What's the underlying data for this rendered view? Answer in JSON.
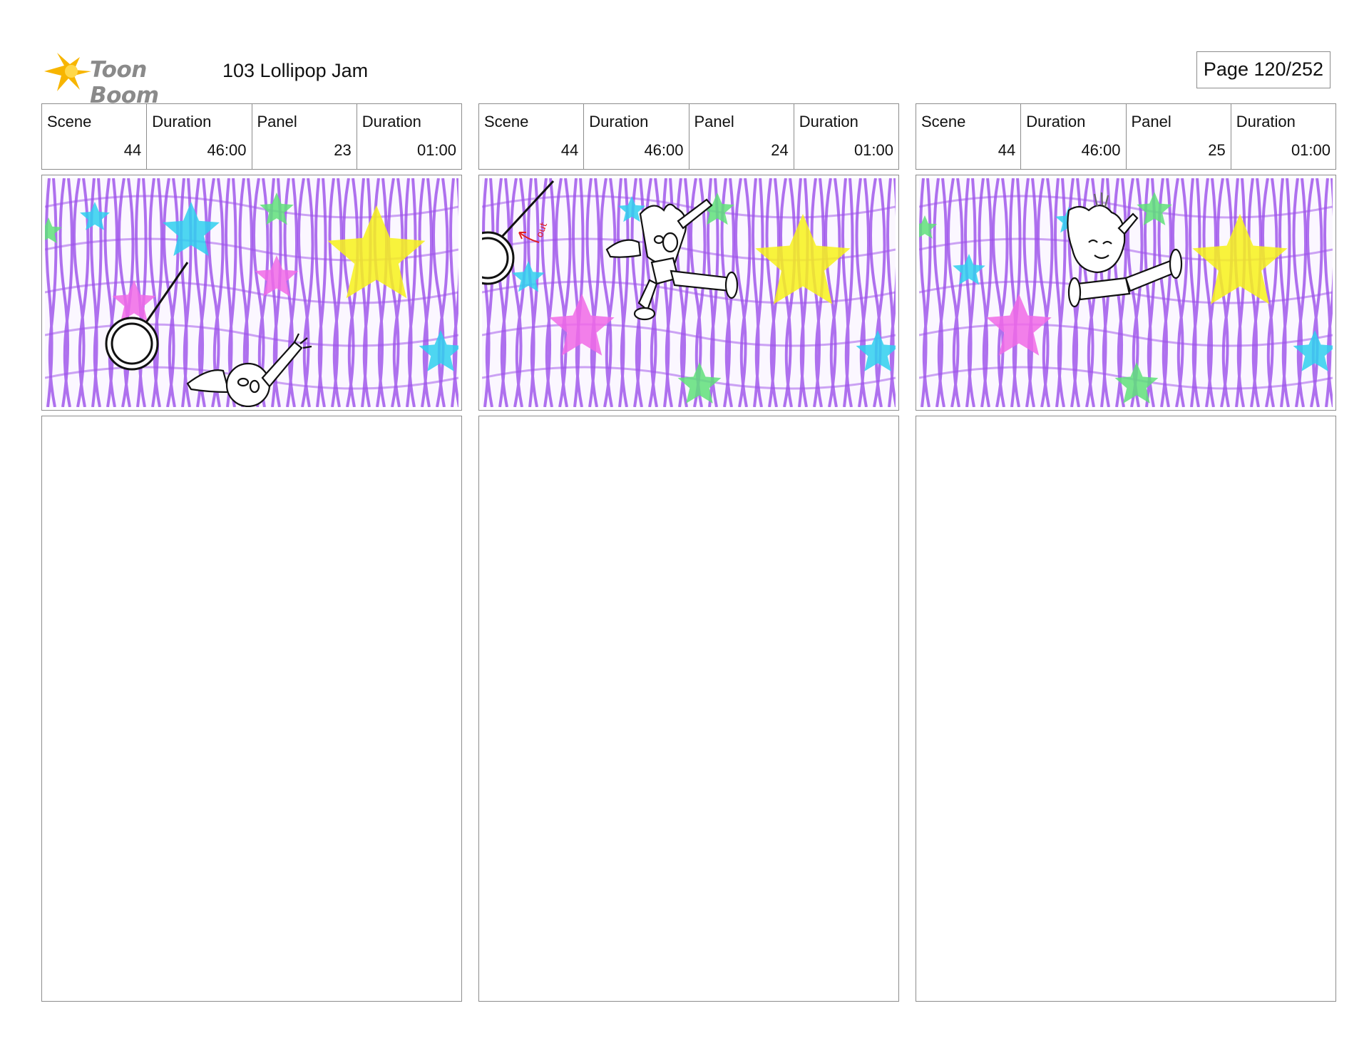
{
  "header": {
    "logo_text": "Toon Boom",
    "project_title": "103 Lollipop Jam",
    "page_label": "Page 120/252"
  },
  "labels": {
    "scene": "Scene",
    "duration": "Duration",
    "panel": "Panel"
  },
  "panels": [
    {
      "scene": "44",
      "scene_duration": "46:00",
      "panel": "23",
      "panel_duration": "01:00"
    },
    {
      "scene": "44",
      "scene_duration": "46:00",
      "panel": "24",
      "panel_duration": "01:00",
      "sketch_note": "out"
    },
    {
      "scene": "44",
      "scene_duration": "46:00",
      "panel": "25",
      "panel_duration": "01:00"
    }
  ],
  "colors": {
    "scribble_purple": "#9b4dea",
    "star_yellow": "#f7f21a",
    "star_cyan": "#2fd0ee",
    "star_pink": "#f06ae6",
    "star_green": "#5fe07a",
    "border_gray": "#8d8d8d",
    "logo_yellow": "#f7b500"
  }
}
